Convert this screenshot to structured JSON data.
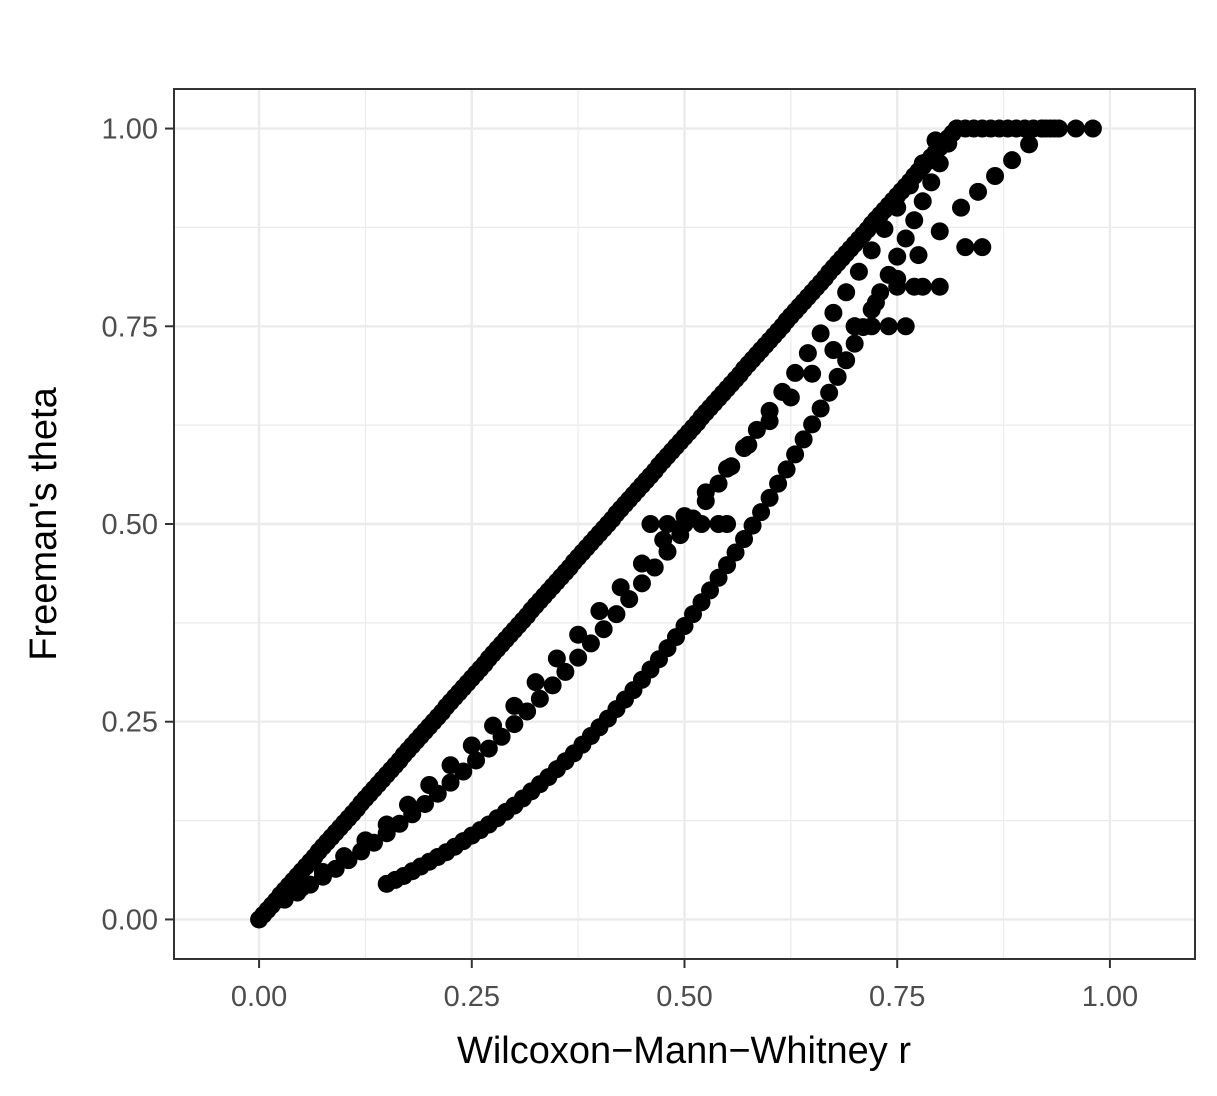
{
  "chart_data": {
    "type": "scatter",
    "title": "",
    "xlabel": "Wilcoxon−Mann−Whitney r",
    "ylabel": "Freeman's theta",
    "xlim": [
      -0.1,
      1.1
    ],
    "ylim": [
      -0.05,
      1.05
    ],
    "x_ticks": [
      0.0,
      0.25,
      0.5,
      0.75,
      1.0
    ],
    "y_ticks": [
      0.0,
      0.25,
      0.5,
      0.75,
      1.0
    ],
    "x_tick_labels": [
      "0.00",
      "0.25",
      "0.50",
      "0.75",
      "1.00"
    ],
    "y_tick_labels": [
      "0.00",
      "0.25",
      "0.50",
      "0.75",
      "1.00"
    ],
    "grid": true,
    "point_color": "#000000",
    "series": [
      {
        "name": "",
        "x": [
          0.0,
          0.005,
          0.01,
          0.015,
          0.02,
          0.025,
          0.03,
          0.035,
          0.04,
          0.045,
          0.05,
          0.055,
          0.06,
          0.065,
          0.07,
          0.075,
          0.08,
          0.085,
          0.09,
          0.095,
          0.1,
          0.105,
          0.11,
          0.115,
          0.12,
          0.125,
          0.13,
          0.135,
          0.14,
          0.145,
          0.15,
          0.155,
          0.16,
          0.165,
          0.17,
          0.175,
          0.18,
          0.185,
          0.19,
          0.195,
          0.2,
          0.205,
          0.21,
          0.215,
          0.22,
          0.225,
          0.23,
          0.235,
          0.24,
          0.245,
          0.25,
          0.255,
          0.26,
          0.265,
          0.27,
          0.275,
          0.28,
          0.285,
          0.29,
          0.295,
          0.3,
          0.305,
          0.31,
          0.315,
          0.32,
          0.325,
          0.33,
          0.335,
          0.34,
          0.345,
          0.35,
          0.355,
          0.36,
          0.365,
          0.37,
          0.375,
          0.38,
          0.385,
          0.39,
          0.395,
          0.4,
          0.405,
          0.41,
          0.415,
          0.42,
          0.425,
          0.43,
          0.435,
          0.44,
          0.445,
          0.45,
          0.455,
          0.46,
          0.465,
          0.47,
          0.475,
          0.48,
          0.485,
          0.49,
          0.495,
          0.5,
          0.505,
          0.51,
          0.515,
          0.52,
          0.525,
          0.53,
          0.535,
          0.54,
          0.545,
          0.55,
          0.555,
          0.56,
          0.565,
          0.57,
          0.575,
          0.58,
          0.585,
          0.59,
          0.595,
          0.6,
          0.605,
          0.61,
          0.615,
          0.62,
          0.625,
          0.63,
          0.635,
          0.64,
          0.645,
          0.65,
          0.655,
          0.66,
          0.665,
          0.67,
          0.675,
          0.68,
          0.685,
          0.69,
          0.695,
          0.7,
          0.705,
          0.71,
          0.715,
          0.72,
          0.725,
          0.73,
          0.735,
          0.74,
          0.745,
          0.75,
          0.755,
          0.76,
          0.765,
          0.77,
          0.775,
          0.78,
          0.785,
          0.79,
          0.795,
          0.8,
          0.805,
          0.81,
          0.815,
          0.82,
          0.03,
          0.045,
          0.06,
          0.075,
          0.09,
          0.105,
          0.12,
          0.135,
          0.15,
          0.165,
          0.18,
          0.195,
          0.21,
          0.225,
          0.24,
          0.255,
          0.27,
          0.285,
          0.3,
          0.315,
          0.33,
          0.345,
          0.36,
          0.375,
          0.39,
          0.405,
          0.42,
          0.435,
          0.45,
          0.465,
          0.48,
          0.495,
          0.51,
          0.525,
          0.54,
          0.555,
          0.57,
          0.585,
          0.6,
          0.615,
          0.63,
          0.645,
          0.66,
          0.675,
          0.69,
          0.705,
          0.72,
          0.735,
          0.75,
          0.765,
          0.78,
          0.795,
          0.15,
          0.16,
          0.17,
          0.18,
          0.19,
          0.2,
          0.21,
          0.22,
          0.23,
          0.24,
          0.25,
          0.26,
          0.27,
          0.28,
          0.29,
          0.3,
          0.31,
          0.32,
          0.33,
          0.34,
          0.35,
          0.36,
          0.37,
          0.38,
          0.39,
          0.4,
          0.41,
          0.42,
          0.43,
          0.44,
          0.45,
          0.46,
          0.47,
          0.48,
          0.49,
          0.5,
          0.51,
          0.52,
          0.53,
          0.54,
          0.55,
          0.56,
          0.57,
          0.58,
          0.59,
          0.6,
          0.61,
          0.62,
          0.63,
          0.64,
          0.65,
          0.66,
          0.67,
          0.68,
          0.69,
          0.7,
          0.71,
          0.72,
          0.73,
          0.74,
          0.75,
          0.76,
          0.77,
          0.78,
          0.79,
          0.8,
          0.81,
          0.82,
          0.83,
          0.84,
          0.85,
          0.86,
          0.87,
          0.88,
          0.89,
          0.9,
          0.91,
          0.92,
          0.93,
          0.05,
          0.075,
          0.1,
          0.125,
          0.15,
          0.175,
          0.2,
          0.225,
          0.25,
          0.275,
          0.3,
          0.325,
          0.35,
          0.375,
          0.4,
          0.425,
          0.45,
          0.475,
          0.5,
          0.525,
          0.55,
          0.575,
          0.6,
          0.625,
          0.65,
          0.675,
          0.7,
          0.725,
          0.75,
          0.775,
          0.8,
          0.825,
          0.845,
          0.865,
          0.885,
          0.905,
          0.925,
          0.935,
          0.46,
          0.48,
          0.5,
          0.52,
          0.54,
          0.55,
          0.7,
          0.72,
          0.74,
          0.76,
          0.75,
          0.77,
          0.78,
          0.8,
          0.83,
          0.85,
          0.92,
          0.94,
          0.96,
          0.98
        ],
        "y": [
          0.0,
          0.006,
          0.012,
          0.018,
          0.024,
          0.031,
          0.037,
          0.043,
          0.049,
          0.055,
          0.061,
          0.067,
          0.073,
          0.079,
          0.086,
          0.092,
          0.098,
          0.104,
          0.11,
          0.116,
          0.122,
          0.128,
          0.134,
          0.14,
          0.147,
          0.153,
          0.159,
          0.165,
          0.171,
          0.177,
          0.183,
          0.189,
          0.195,
          0.201,
          0.208,
          0.214,
          0.22,
          0.226,
          0.232,
          0.238,
          0.244,
          0.25,
          0.256,
          0.262,
          0.269,
          0.275,
          0.281,
          0.287,
          0.293,
          0.299,
          0.305,
          0.311,
          0.317,
          0.323,
          0.33,
          0.336,
          0.342,
          0.348,
          0.354,
          0.36,
          0.366,
          0.372,
          0.378,
          0.384,
          0.391,
          0.397,
          0.403,
          0.409,
          0.415,
          0.421,
          0.427,
          0.433,
          0.439,
          0.445,
          0.452,
          0.458,
          0.464,
          0.47,
          0.476,
          0.482,
          0.488,
          0.494,
          0.5,
          0.506,
          0.513,
          0.519,
          0.525,
          0.531,
          0.537,
          0.543,
          0.549,
          0.555,
          0.561,
          0.567,
          0.574,
          0.58,
          0.586,
          0.592,
          0.598,
          0.604,
          0.61,
          0.616,
          0.622,
          0.628,
          0.635,
          0.641,
          0.647,
          0.653,
          0.659,
          0.665,
          0.671,
          0.677,
          0.683,
          0.689,
          0.696,
          0.702,
          0.708,
          0.714,
          0.72,
          0.726,
          0.732,
          0.738,
          0.744,
          0.75,
          0.757,
          0.763,
          0.769,
          0.775,
          0.781,
          0.787,
          0.793,
          0.799,
          0.805,
          0.811,
          0.818,
          0.824,
          0.83,
          0.836,
          0.842,
          0.848,
          0.854,
          0.86,
          0.866,
          0.872,
          0.879,
          0.885,
          0.891,
          0.897,
          0.903,
          0.909,
          0.915,
          0.921,
          0.927,
          0.933,
          0.94,
          0.946,
          0.952,
          0.958,
          0.964,
          0.97,
          0.976,
          0.982,
          0.988,
          0.994,
          1.0,
          0.025,
          0.034,
          0.044,
          0.054,
          0.064,
          0.075,
          0.086,
          0.097,
          0.109,
          0.121,
          0.133,
          0.146,
          0.159,
          0.173,
          0.187,
          0.201,
          0.216,
          0.231,
          0.247,
          0.263,
          0.279,
          0.296,
          0.313,
          0.331,
          0.349,
          0.367,
          0.386,
          0.405,
          0.425,
          0.445,
          0.465,
          0.486,
          0.507,
          0.529,
          0.551,
          0.573,
          0.596,
          0.619,
          0.643,
          0.667,
          0.691,
          0.716,
          0.741,
          0.767,
          0.793,
          0.819,
          0.846,
          0.873,
          0.9,
          0.928,
          0.956,
          0.985,
          0.045,
          0.05,
          0.055,
          0.061,
          0.067,
          0.073,
          0.079,
          0.085,
          0.092,
          0.099,
          0.106,
          0.113,
          0.12,
          0.128,
          0.136,
          0.144,
          0.153,
          0.162,
          0.171,
          0.18,
          0.19,
          0.2,
          0.21,
          0.221,
          0.232,
          0.243,
          0.254,
          0.266,
          0.278,
          0.29,
          0.303,
          0.316,
          0.329,
          0.343,
          0.357,
          0.371,
          0.386,
          0.401,
          0.416,
          0.432,
          0.448,
          0.464,
          0.481,
          0.498,
          0.515,
          0.533,
          0.551,
          0.569,
          0.588,
          0.607,
          0.626,
          0.646,
          0.666,
          0.686,
          0.707,
          0.728,
          0.749,
          0.771,
          0.793,
          0.815,
          0.838,
          0.861,
          0.884,
          0.908,
          0.932,
          0.956,
          0.981,
          1.0,
          1.0,
          1.0,
          1.0,
          1.0,
          1.0,
          1.0,
          1.0,
          1.0,
          1.0,
          1.0,
          1.0,
          0.04,
          0.06,
          0.08,
          0.1,
          0.12,
          0.145,
          0.17,
          0.195,
          0.22,
          0.245,
          0.27,
          0.3,
          0.33,
          0.36,
          0.39,
          0.42,
          0.45,
          0.48,
          0.51,
          0.54,
          0.57,
          0.6,
          0.63,
          0.66,
          0.69,
          0.72,
          0.75,
          0.78,
          0.81,
          0.84,
          0.87,
          0.9,
          0.92,
          0.94,
          0.96,
          0.98,
          1.0,
          1.0,
          0.5,
          0.5,
          0.5,
          0.5,
          0.5,
          0.5,
          0.75,
          0.75,
          0.75,
          0.75,
          0.8,
          0.8,
          0.8,
          0.8,
          0.85,
          0.85,
          1.0,
          1.0,
          1.0,
          1.0
        ]
      }
    ]
  }
}
